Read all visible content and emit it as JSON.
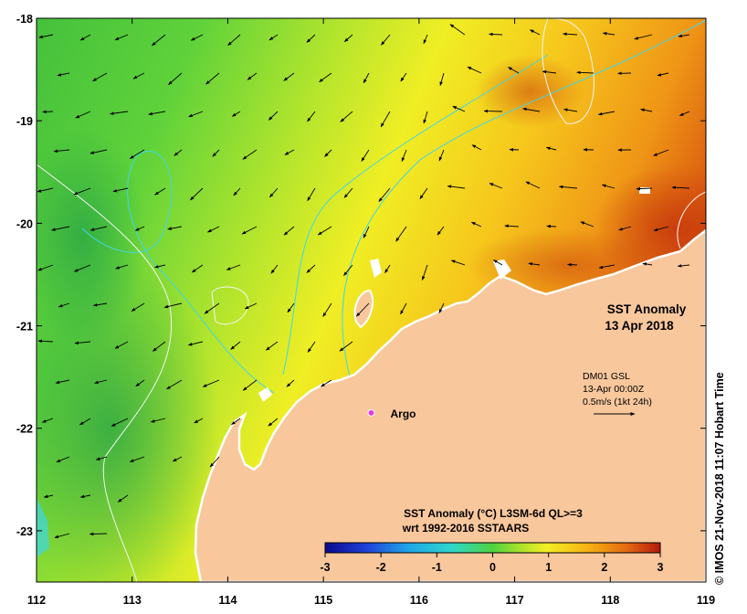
{
  "map": {
    "title_line1": "SST Anomaly",
    "title_line2": "13 Apr 2018",
    "x_ticks": [
      "112",
      "113",
      "114",
      "115",
      "116",
      "117",
      "118",
      "119"
    ],
    "x_tick_values": [
      112,
      113,
      114,
      115,
      116,
      117,
      118,
      119
    ],
    "y_ticks": [
      "-18",
      "-19",
      "-20",
      "-21",
      "-22",
      "-23"
    ],
    "y_tick_values": [
      -18,
      -19,
      -20,
      -21,
      -22,
      -23
    ],
    "lon_range": [
      112,
      119
    ],
    "lat_range": [
      -23.5,
      -18
    ],
    "argo": {
      "label": "Argo",
      "lon": 115.5,
      "lat": -21.85
    },
    "current_key": {
      "line1": "DM01 GSL",
      "line2": "13-Apr 00:00Z",
      "line3": "0.5m/s (1kt 24h)"
    },
    "colorbar": {
      "title_line1": "SST Anomaly (°C) L3SM-6d QL>=3",
      "title_line2": "wrt 1992-2016 SSTAARS",
      "ticks": [
        "-3",
        "-2",
        "-1",
        "0",
        "1",
        "2",
        "3"
      ],
      "tick_values": [
        -3,
        -2,
        -1,
        0,
        1,
        2,
        3
      ],
      "range": [
        -3,
        3
      ],
      "colors": [
        "#0a0a8c",
        "#1f3fd8",
        "#1fa6e8",
        "#2fd8c8",
        "#4fd23f",
        "#a8e22a",
        "#f2ee24",
        "#f6b414",
        "#e46a10",
        "#b41a0c"
      ]
    },
    "credit": "© IMOS 21-Nov-2018 11:07 Hobart Time",
    "colors": {
      "land": "#f8c79c",
      "coast_white": "#ffffff",
      "isobath_cyan": "#3fd7e6",
      "isobath_white": "#f4f4f4",
      "argo_marker": "#e23ce0"
    }
  }
}
